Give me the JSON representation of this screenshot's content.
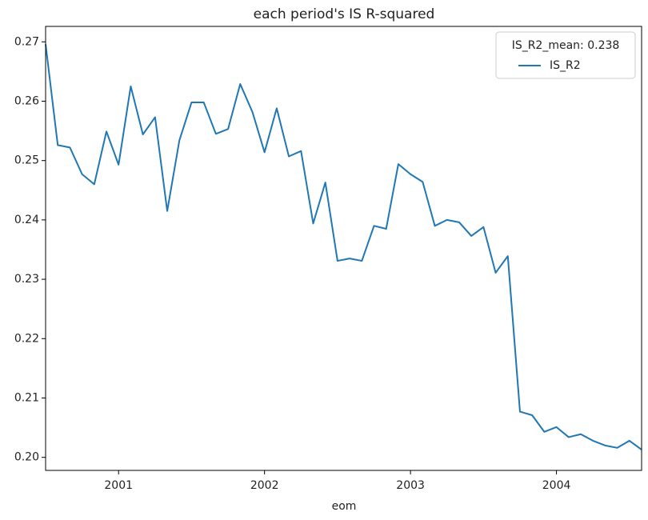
{
  "chart_data": {
    "type": "line",
    "title": "each period's IS R-squared",
    "x_label": "eom",
    "legend_title": "IS_R2_mean: 0.238",
    "legend_position": "upper right",
    "grid": false,
    "categories": [
      null,
      null,
      null,
      null,
      null,
      null,
      "2001",
      null,
      null,
      null,
      null,
      null,
      null,
      null,
      null,
      null,
      null,
      null,
      "2002",
      null,
      null,
      null,
      null,
      null,
      null,
      null,
      null,
      null,
      null,
      null,
      "2003",
      null,
      null,
      null,
      null,
      null,
      null,
      null,
      null,
      null,
      null,
      null,
      "2004",
      null,
      null,
      null,
      null,
      null,
      null,
      null
    ],
    "series": [
      {
        "name": "IS_R2",
        "color": "#1f77b4",
        "values": [
          0.2696,
          0.2526,
          0.2522,
          0.2477,
          0.246,
          0.2549,
          0.2493,
          0.2625,
          0.2544,
          0.2573,
          0.2415,
          0.2534,
          0.2598,
          0.2598,
          0.2545,
          0.2553,
          0.2629,
          0.2582,
          0.2514,
          0.2588,
          0.2507,
          0.2516,
          0.2394,
          0.2463,
          0.2331,
          0.2335,
          0.2331,
          0.239,
          0.2385,
          0.2494,
          0.2477,
          0.2464,
          0.239,
          0.24,
          0.2396,
          0.2373,
          0.2388,
          0.2311,
          0.2339,
          0.2077,
          0.2071,
          0.2043,
          0.2051,
          0.2034,
          0.2039,
          0.2028,
          0.202,
          0.2016,
          0.2028,
          0.2013
        ]
      }
    ],
    "ylim": [
      0.1978,
      0.2726
    ],
    "yticks": [
      {
        "value": 0.2,
        "label": "0.20"
      },
      0.21,
      0.22,
      0.23,
      0.24,
      0.25,
      0.26,
      0.27
    ]
  }
}
